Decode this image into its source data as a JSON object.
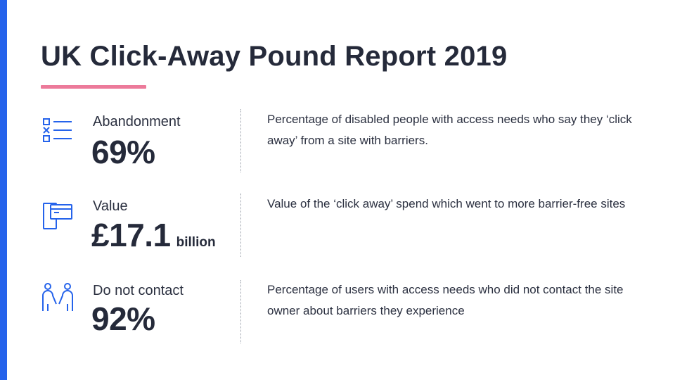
{
  "accent_colors": {
    "left_bar": "#2563eb",
    "underline": "#ec7a9a",
    "icon": "#2563eb"
  },
  "title": "UK Click-Away Pound Report 2019",
  "stats": [
    {
      "icon": "checklist-icon",
      "label": "Abandonment",
      "value": "69%",
      "unit": "",
      "description": "Percentage of disabled people with access needs who say they ‘click away’ from a site with barriers."
    },
    {
      "icon": "devices-icon",
      "label": "Value",
      "value": "£17.1",
      "unit": "billion",
      "description": "Value of the ‘click away’ spend which went to more barrier-free sites"
    },
    {
      "icon": "people-icon",
      "label": "Do not contact",
      "value": "92%",
      "unit": "",
      "description": "Percentage of users with access needs who did not contact the site owner about barriers they experience"
    }
  ]
}
